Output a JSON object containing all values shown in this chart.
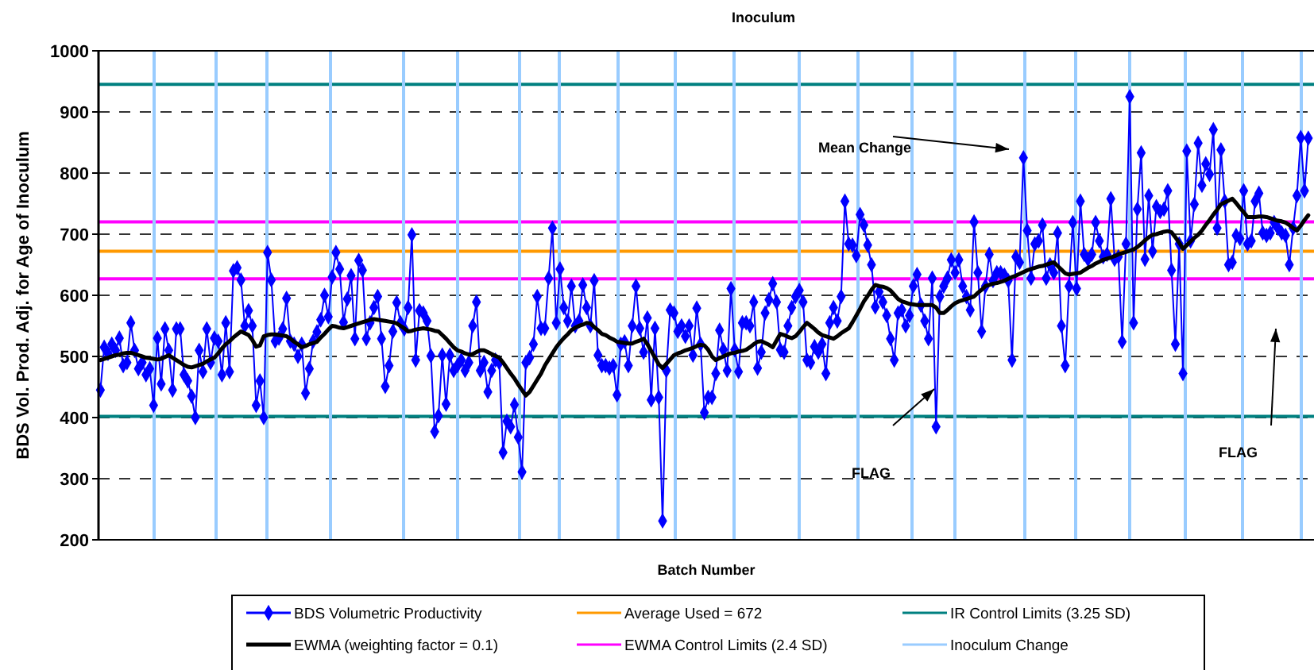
{
  "chart_data": {
    "type": "line",
    "title": "Inoculum",
    "xlabel": "Batch Number",
    "ylabel": "BDS Vol. Prod. Adj. for Age of Inoculum",
    "ylim": [
      200,
      1000
    ],
    "yticks": [
      200,
      300,
      400,
      500,
      600,
      700,
      800,
      900,
      1000
    ],
    "tick_labels": "y",
    "grid": "y",
    "legend": "bottom",
    "categories": [
      null,
      null,
      null,
      null,
      null,
      null,
      null,
      null,
      null,
      null,
      null,
      null,
      null,
      null,
      null,
      null,
      null,
      null,
      null,
      null,
      null,
      null,
      null,
      null,
      null,
      null,
      null,
      null,
      null,
      null,
      null,
      null,
      null,
      null,
      null,
      null,
      null,
      null,
      null,
      null,
      null,
      null,
      null,
      null,
      null,
      null,
      null,
      null,
      null,
      null,
      null,
      null,
      null,
      null,
      null,
      null,
      null,
      null,
      null,
      null,
      null,
      null,
      null,
      null,
      null,
      null,
      null,
      null,
      null,
      null,
      null,
      null,
      null,
      null,
      null,
      null,
      null,
      null,
      null,
      null,
      null,
      null,
      null,
      null,
      null,
      null,
      null,
      null,
      null,
      null,
      null,
      null,
      null,
      null,
      null,
      null,
      null,
      null,
      null,
      null,
      null,
      null,
      null,
      null,
      null,
      null,
      null,
      null,
      null,
      null,
      null,
      null,
      null,
      null,
      null,
      null,
      null,
      null,
      null,
      null,
      null,
      null,
      null,
      null,
      null,
      null,
      null,
      null,
      null,
      null,
      null,
      null,
      null,
      null,
      null,
      null,
      null,
      null,
      null,
      null,
      null,
      null,
      null,
      null,
      null,
      null,
      null,
      null,
      null,
      null,
      null,
      null,
      null,
      null,
      null,
      null,
      null,
      null,
      null,
      null,
      null,
      null,
      null,
      null,
      null,
      null,
      null,
      null,
      null,
      null,
      null,
      null,
      null,
      null,
      null,
      null,
      null,
      null,
      null,
      null,
      null,
      null,
      null,
      null,
      null,
      null,
      null,
      null,
      null,
      null,
      null,
      null,
      null,
      null,
      null,
      null,
      null,
      null,
      null,
      null,
      null,
      null,
      null,
      null,
      null,
      null,
      null,
      null,
      null,
      null,
      null,
      null,
      null,
      null,
      null,
      null,
      null,
      null,
      null,
      null,
      null,
      null,
      null,
      null,
      null,
      null,
      null,
      null,
      null,
      null,
      null,
      null,
      null,
      null,
      null,
      null,
      null,
      null,
      null,
      null,
      null,
      null,
      null,
      null,
      null,
      null,
      null,
      null,
      null,
      null,
      null,
      null,
      null,
      null,
      null,
      null,
      null,
      null,
      null,
      null,
      null,
      null,
      null,
      null,
      null,
      null,
      null,
      null,
      null,
      null,
      null,
      null,
      null,
      null,
      null,
      null,
      null,
      null,
      null,
      null,
      null,
      null,
      null,
      null,
      null,
      null,
      null,
      null,
      null,
      null,
      null,
      null,
      null,
      null,
      null,
      null,
      null,
      null,
      null,
      null,
      null,
      null,
      null,
      null,
      null,
      null,
      null,
      null,
      null,
      null,
      null,
      null,
      null,
      null,
      null,
      null,
      null,
      null,
      null
    ],
    "series": [
      {
        "name": "BDS Volumetric Productivity",
        "color": "#0000ff",
        "marker": "diamond",
        "values": [
          445,
          515,
          505,
          520,
          510,
          530,
          485,
          490,
          555,
          510,
          480,
          490,
          470,
          480,
          420,
          530,
          455,
          545,
          510,
          445,
          545,
          545,
          470,
          460,
          435,
          400,
          510,
          475,
          545,
          490,
          530,
          525,
          470,
          555,
          475,
          640,
          645,
          625,
          550,
          575,
          550,
          420,
          460,
          400,
          670,
          625,
          525,
          530,
          545,
          595,
          525,
          520,
          500,
          520,
          440,
          480,
          525,
          540,
          560,
          600,
          565,
          630,
          670,
          643,
          556,
          594,
          632,
          529,
          657,
          641,
          529,
          555,
          580,
          598,
          529,
          451,
          485,
          541,
          588,
          555,
          545,
          580,
          699,
          494,
          575,
          571,
          558,
          501,
          377,
          403,
          502,
          422,
          502,
          477,
          485,
          494,
          477,
          490,
          550,
          589,
          477,
          490,
          442,
          477,
          494,
          490,
          343,
          394,
          385,
          421,
          368,
          311,
          490,
          498,
          520,
          598,
          546,
          546,
          628,
          710,
          555,
          643,
          580,
          558,
          615,
          550,
          558,
          617,
          580,
          550,
          624,
          502,
          485,
          485,
          481,
          485,
          437,
          520,
          524,
          485,
          550,
          615,
          546,
          507,
          563,
          429,
          546,
          433,
          231,
          477,
          576,
          571,
          541,
          550,
          533,
          550,
          502,
          579,
          520,
          408,
          433,
          433,
          472,
          543,
          511,
          477,
          611,
          511,
          475,
          555,
          555,
          550,
          589,
          481,
          507,
          571,
          593,
          619,
          589,
          511,
          507,
          550,
          580,
          598,
          608,
          589,
          494,
          490,
          516,
          507,
          520,
          472,
          555,
          580,
          558,
          598,
          754,
          684,
          682,
          665,
          732,
          715,
          682,
          650,
          581,
          606,
          589,
          567,
          529,
          494,
          571,
          576,
          550,
          567,
          615,
          634,
          584,
          558,
          529,
          628,
          385,
          598,
          615,
          628,
          658,
          637,
          658,
          615,
          598,
          576,
          720,
          637,
          541,
          615,
          667,
          624,
          637,
          637,
          633,
          624,
          494,
          663,
          654,
          825,
          706,
          628,
          684,
          689,
          715,
          628,
          650,
          637,
          702,
          550,
          485,
          615,
          719,
          611,
          754,
          667,
          659,
          667,
          719,
          689,
          663,
          667,
          758,
          659,
          663,
          524,
          684,
          925,
          555,
          741,
          833,
          659,
          763,
          672,
          745,
          737,
          741,
          771,
          641,
          520,
          684,
          472,
          836,
          689,
          749,
          849,
          780,
          815,
          798,
          871,
          710,
          838,
          754,
          650,
          654,
          698,
          693,
          771,
          684,
          689,
          754,
          767,
          702,
          698,
          702,
          719,
          710,
          702,
          698,
          650,
          710,
          763,
          858,
          771,
          857
        ]
      },
      {
        "name": "EWMA (weighting factor = 0.1)",
        "color": "#000000",
        "marker": "none",
        "values": [
          494,
          496,
          498,
          500,
          502,
          503,
          505,
          506,
          506,
          504,
          502,
          500,
          498,
          497,
          496,
          495,
          496,
          499,
          502,
          498,
          494,
          490,
          486,
          483,
          482,
          484,
          486,
          488,
          492,
          495,
          498,
          505,
          513,
          520,
          525,
          531,
          536,
          541,
          538,
          535,
          527,
          516,
          518,
          533,
          535,
          536,
          536,
          535,
          534,
          533,
          529,
          524,
          520,
          515,
          517,
          520,
          522,
          524,
          531,
          537,
          544,
          550,
          549,
          547,
          546,
          548,
          550,
          552,
          554,
          556,
          558,
          560,
          561,
          560,
          559,
          558,
          557,
          556,
          554,
          550,
          546,
          541,
          542,
          544,
          545,
          546,
          545,
          544,
          542,
          541,
          535,
          529,
          522,
          515,
          510,
          508,
          505,
          503,
          504,
          507,
          510,
          510,
          507,
          504,
          501,
          498,
          490,
          481,
          472,
          464,
          454,
          445,
          436,
          442,
          452,
          462,
          472,
          485,
          495,
          505,
          515,
          523,
          530,
          536,
          543,
          547,
          550,
          552,
          555,
          554,
          548,
          543,
          537,
          535,
          531,
          528,
          524,
          523,
          522,
          521,
          521,
          524,
          526,
          529,
          520,
          509,
          498,
          487,
          481,
          488,
          495,
          502,
          505,
          507,
          510,
          512,
          514,
          517,
          519,
          518,
          511,
          500,
          494,
          497,
          500,
          503,
          505,
          506,
          508,
          509,
          511,
          515,
          520,
          524,
          525,
          522,
          519,
          515,
          526,
          537,
          535,
          532,
          530,
          533,
          540,
          548,
          555,
          550,
          545,
          539,
          535,
          533,
          531,
          529,
          533,
          538,
          542,
          546,
          556,
          567,
          578,
          590,
          599,
          609,
          617,
          615,
          614,
          612,
          608,
          601,
          594,
          590,
          588,
          586,
          585,
          584,
          584,
          584,
          584,
          584,
          580,
          571,
          571,
          576,
          582,
          587,
          590,
          592,
          594,
          596,
          598,
          604,
          609,
          615,
          617,
          619,
          620,
          622,
          624,
          627,
          630,
          632,
          635,
          638,
          641,
          643,
          645,
          647,
          648,
          650,
          652,
          654,
          648,
          642,
          636,
          634,
          635,
          636,
          637,
          641,
          645,
          648,
          652,
          655,
          658,
          660,
          662,
          664,
          667,
          669,
          671,
          673,
          675,
          679,
          684,
          690,
          695,
          699,
          700,
          702,
          704,
          705,
          703,
          695,
          686,
          676,
          682,
          688,
          694,
          699,
          706,
          715,
          723,
          732,
          740,
          749,
          752,
          755,
          758,
          751,
          743,
          736,
          728,
          728,
          728,
          729,
          729,
          728,
          726,
          724,
          722,
          721,
          719,
          715,
          710,
          706,
          714,
          723,
          731
        ]
      }
    ],
    "ref_lines": [
      {
        "axis": "y",
        "value": 672,
        "label": "Average Used = 672",
        "color": "#ff9900"
      },
      {
        "axis": "y",
        "value": 720,
        "label": "EWMA Control Limits (2.4 SD)",
        "color": "#ff00ff"
      },
      {
        "axis": "y",
        "value": 627,
        "color": "#ff00ff"
      },
      {
        "axis": "y",
        "value": 945,
        "label": "IR Control Limits (3.25 SD)",
        "color": "#008080"
      },
      {
        "axis": "y",
        "value": 402,
        "color": "#008080"
      },
      {
        "axis": "x",
        "label": "Inoculum Change",
        "color": "#99ccff"
      }
    ],
    "annotations": [
      "Mean Change",
      "FLAG",
      "FLAG"
    ]
  }
}
